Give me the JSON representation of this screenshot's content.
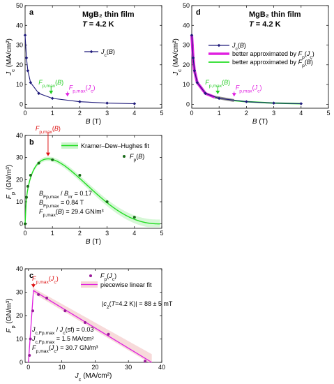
{
  "chart_data": [
    {
      "panel": "a",
      "type": "line",
      "title": "MgB₂ thin film",
      "subtitle": "T = 4.2 K",
      "xlabel": "B (T)",
      "ylabel": "Jc (MA/cm²)",
      "xlim": [
        0,
        5
      ],
      "ylim": [
        -2,
        50
      ],
      "xticks": [
        "0",
        "1",
        "2",
        "3",
        "4",
        "5"
      ],
      "yticks": [
        "0",
        "10",
        "20",
        "30",
        "40",
        "50"
      ],
      "legend": "right",
      "series": [
        {
          "name": "Jc(B)",
          "color": "#1f1a7a",
          "marker": "diamond",
          "x": [
            0,
            0.05,
            0.1,
            0.2,
            0.5,
            1.0,
            2.0,
            3.0,
            4.0
          ],
          "y": [
            35,
            23.5,
            17,
            11,
            5.5,
            3.0,
            1.3,
            0.6,
            0.3
          ]
        }
      ],
      "annotations": [
        {
          "text": "Fp,max(B)",
          "x": 0.95,
          "y": 3.0,
          "color": "#22cc22"
        },
        {
          "text": "Fp,max(Jc)",
          "x": 1.55,
          "y": 1.8,
          "color": "#e020e0"
        }
      ]
    },
    {
      "panel": "d",
      "type": "line",
      "title": "MgB₂ thin film",
      "subtitle": "T = 4.2 K",
      "xlabel": "B (T)",
      "ylabel": "Jc (MA/cm²)",
      "xlim": [
        0,
        5
      ],
      "ylim": [
        -2,
        50
      ],
      "xticks": [
        "0",
        "1",
        "2",
        "3",
        "4",
        "5"
      ],
      "yticks": [
        "0",
        "10",
        "20",
        "30",
        "40",
        "50"
      ],
      "legend": "right",
      "series": [
        {
          "name": "Jc(B)",
          "color": "#1f1a7a",
          "marker": "diamond",
          "x": [
            0,
            0.05,
            0.1,
            0.2,
            0.5,
            1.0,
            2.0,
            3.0,
            4.0
          ],
          "y": [
            35,
            23.5,
            17,
            11,
            5.5,
            3.0,
            1.3,
            0.6,
            0.3
          ]
        },
        {
          "name": "better approximated by Fp(Jc)",
          "color": "#e020e0",
          "x": [
            0,
            0.05,
            0.1,
            0.2,
            0.5,
            0.84
          ],
          "y": [
            35,
            23.5,
            17,
            11,
            5.5,
            3.6
          ]
        },
        {
          "name": "better approximated by Fp(B)",
          "color": "#22dd22",
          "x": [
            1.55,
            2.0,
            3.0,
            4.0
          ],
          "y": [
            1.9,
            1.3,
            0.6,
            0.3
          ]
        }
      ],
      "annotations": [
        {
          "text": "Fp,max(B)",
          "x": 0.95,
          "y": 3.0,
          "color": "#22cc22"
        },
        {
          "text": "Fp,max(Jc)",
          "x": 1.55,
          "y": 1.8,
          "color": "#e020e0"
        }
      ]
    },
    {
      "panel": "b",
      "type": "scatter",
      "xlabel": "B (T)",
      "ylabel": "Fp (GN/m³)",
      "xlim": [
        0,
        5
      ],
      "ylim": [
        -2,
        40
      ],
      "xticks": [
        "0",
        "1",
        "2",
        "3",
        "4",
        "5"
      ],
      "yticks": [
        "0",
        "10",
        "20",
        "30",
        "40"
      ],
      "legend": "top-right",
      "series": [
        {
          "name": "Fp(B)",
          "color": "#1a6b1a",
          "marker": "circle",
          "x": [
            0,
            0.05,
            0.1,
            0.2,
            0.5,
            1.0,
            2.0,
            3.0,
            4.0
          ],
          "y": [
            0,
            12,
            17,
            22,
            27.5,
            29,
            22,
            10,
            3
          ]
        },
        {
          "name": "Kramer–Dew–Hughes fit",
          "color": "#22dd22",
          "type": "line",
          "params": {
            "Fpmax": 29.4,
            "Birr": 4.94,
            "p": 0.47,
            "q": 2.3
          }
        }
      ],
      "annotations": [
        {
          "text": "Fp,max(B)",
          "x": 0.84,
          "y": 29.4,
          "color": "#dd1111"
        }
      ],
      "text_block": [
        "BFp,max / Birr = 0.17",
        "BFp,max = 0.84 T",
        "Fp,max(B) = 29.4 GN/m³"
      ]
    },
    {
      "panel": "c",
      "type": "scatter",
      "xlabel": "Jc (MA/cm²)",
      "ylabel": "Fp (GN/m³)",
      "xlim": [
        -1,
        40
      ],
      "ylim": [
        0,
        40
      ],
      "xticks": [
        "0",
        "10",
        "20",
        "30",
        "40"
      ],
      "yticks": [
        "0",
        "10",
        "20",
        "30",
        "40"
      ],
      "legend": "top-right",
      "series": [
        {
          "name": "Fp(Jc)",
          "color": "#9a1a9a",
          "marker": "circle",
          "x": [
            0.3,
            0.6,
            1.3,
            3.0,
            5.5,
            11,
            17,
            24,
            35
          ],
          "y": [
            3,
            10,
            22,
            29,
            27.5,
            22,
            17,
            12,
            0.5
          ]
        },
        {
          "name": "piecewise linear fit",
          "color": "#e020e0",
          "type": "line",
          "x": [
            0,
            1.5,
            37
          ],
          "y": [
            0,
            30.7,
            0
          ]
        }
      ],
      "annotations": [
        {
          "text": "Fp,max(Jc)",
          "x": 1.5,
          "y": 30.7,
          "color": "#dd1111"
        }
      ],
      "text_block": [
        "|c2(T=4.2 K)| = 88 ± 5 mT",
        "Jc,Fp,max / Jc(sf) = 0.03",
        "Jc,Fp,max = 1.5 MA/cm²",
        "Fp,max(Jc) = 30.7 GN/m³"
      ]
    }
  ]
}
